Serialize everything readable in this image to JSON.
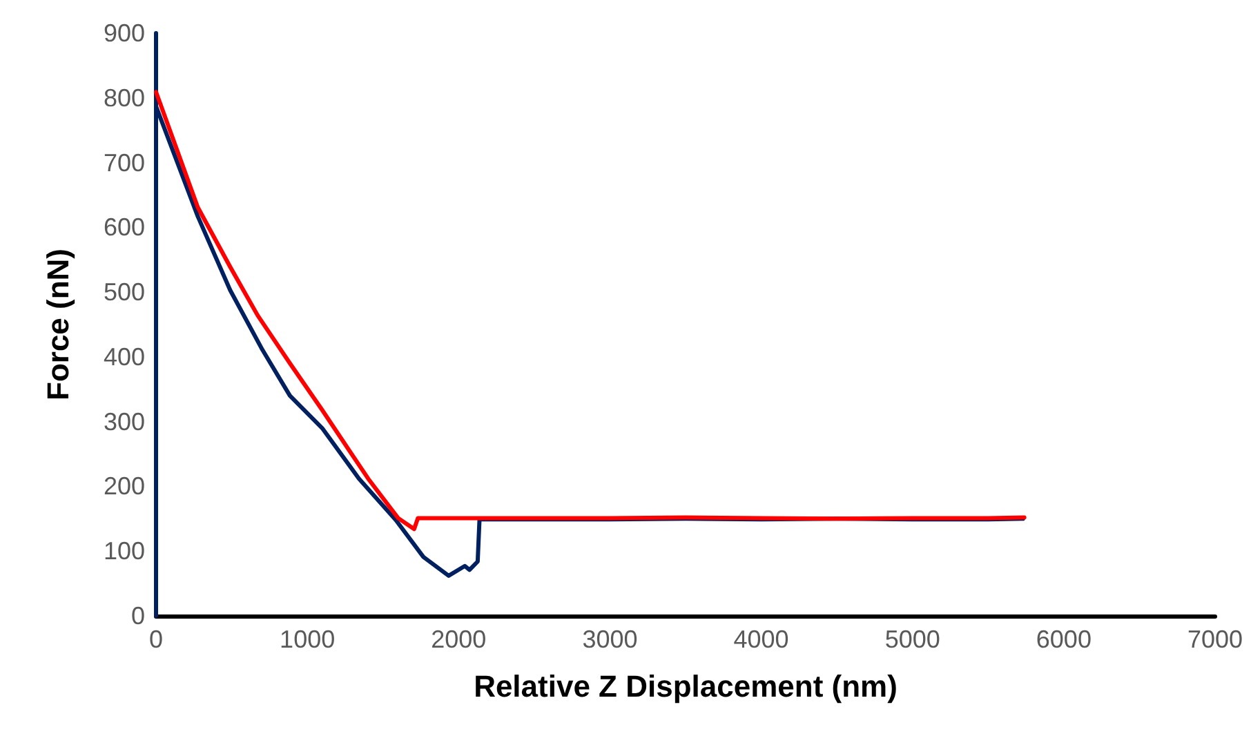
{
  "chart_data": {
    "type": "line",
    "xlabel": "Relative Z Displacement (nm)",
    "ylabel": "Force (nN)",
    "xlim": [
      0,
      7000
    ],
    "xticks": [
      0,
      1000,
      2000,
      3000,
      4000,
      5000,
      6000,
      7000
    ],
    "ylim": [
      0,
      900
    ],
    "yticks": [
      0,
      100,
      200,
      300,
      400,
      500,
      600,
      700,
      800,
      900
    ],
    "grid": false,
    "marker": "none",
    "line_style": "solid",
    "series": [
      {
        "color": "#002060",
        "x": [
          0,
          0,
          0,
          276,
          490,
          703,
          885,
          1098,
          1341,
          1585,
          1767,
          1934,
          2041,
          2072,
          2126,
          2138,
          2500,
          3000,
          3500,
          4000,
          4500,
          5000,
          5500,
          5730
        ],
        "values": [
          0,
          900,
          787,
          617,
          503,
          411,
          340,
          290,
          212,
          148,
          91,
          62,
          77,
          71,
          84,
          149,
          149,
          149,
          150,
          149,
          150,
          149,
          149,
          150
        ]
      },
      {
        "color": "#ff0000",
        "x": [
          0,
          276,
          490,
          672,
          885,
          1098,
          1402,
          1600,
          1706,
          1731,
          2000,
          2500,
          3000,
          3500,
          4000,
          4500,
          5000,
          5500,
          5739
        ],
        "values": [
          809,
          631,
          539,
          464,
          390,
          318,
          212,
          151,
          134,
          151,
          151,
          151,
          151,
          152,
          151,
          150,
          151,
          151,
          152
        ]
      }
    ]
  }
}
